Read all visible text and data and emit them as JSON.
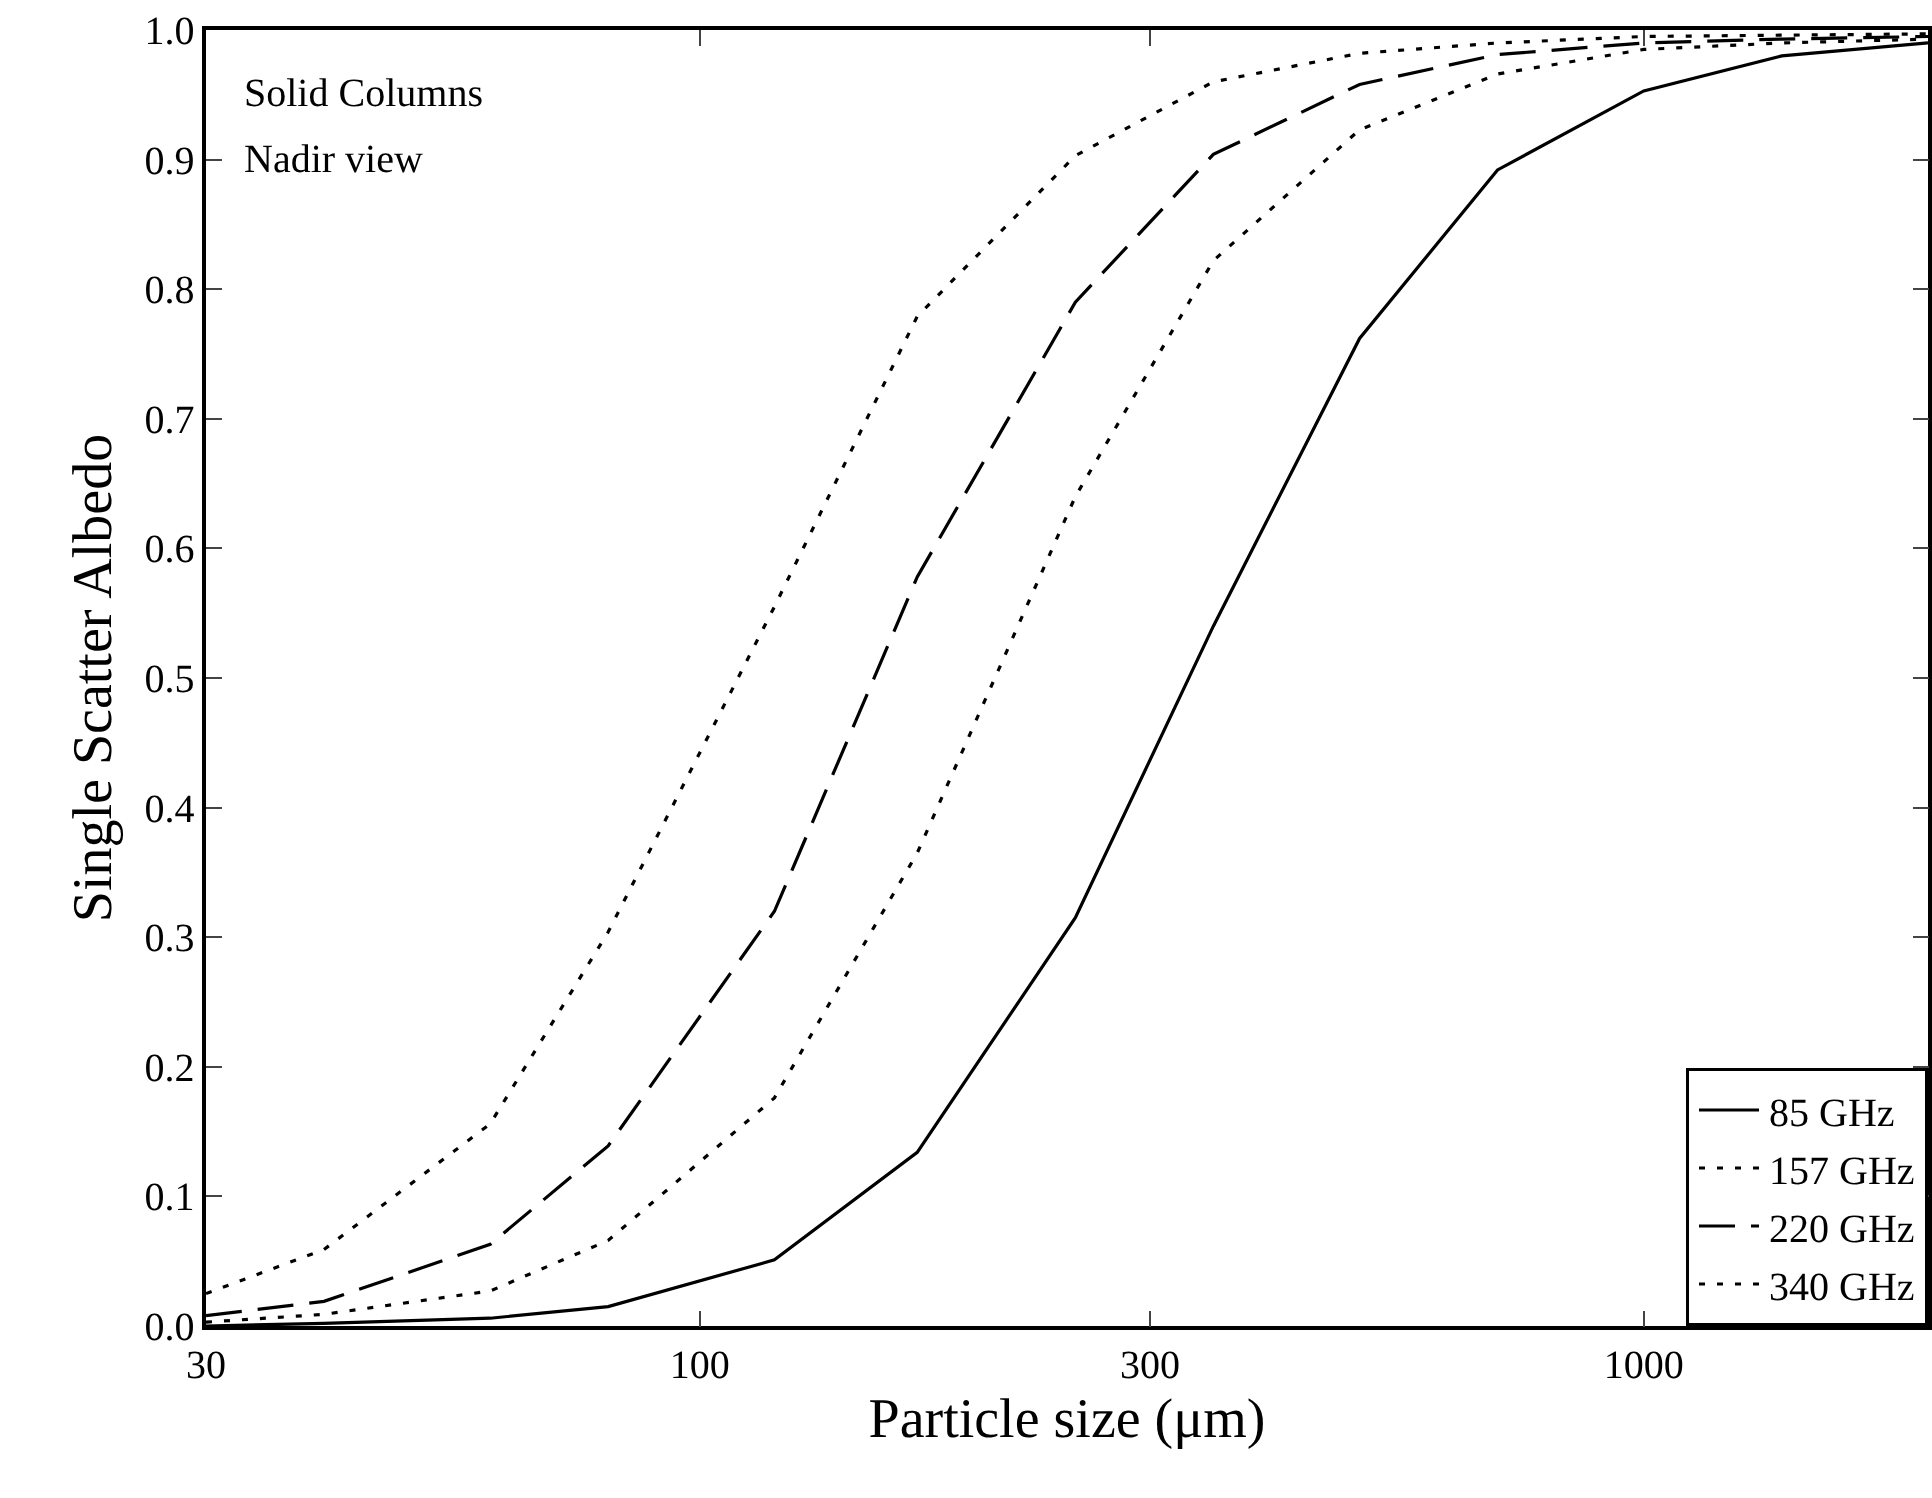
{
  "chart_data": {
    "type": "line",
    "xlabel": "Particle size (μm)",
    "ylabel": "Single Scatter Albedo",
    "annotations": [
      "Solid Columns",
      "Nadir view"
    ],
    "x": [
      30,
      40,
      60,
      80,
      120,
      170,
      250,
      350,
      500,
      700,
      1000,
      1400,
      2000
    ],
    "series": [
      {
        "name": "85 GHz",
        "color": "#000000",
        "line_style": "solid",
        "values": [
          0.0,
          0.002,
          0.006,
          0.015,
          0.051,
          0.134,
          0.315,
          0.54,
          0.762,
          0.892,
          0.953,
          0.98,
          0.99
        ]
      },
      {
        "name": "157 GHz",
        "color": "#000000",
        "line_style": "dotted",
        "values": [
          0.003,
          0.009,
          0.027,
          0.066,
          0.176,
          0.365,
          0.64,
          0.822,
          0.923,
          0.966,
          0.985,
          0.99,
          0.993
        ]
      },
      {
        "name": "220 GHz",
        "color": "#000000",
        "line_style": "dashed",
        "values": [
          0.008,
          0.019,
          0.063,
          0.139,
          0.32,
          0.578,
          0.79,
          0.904,
          0.958,
          0.981,
          0.99,
          0.993,
          0.995
        ]
      },
      {
        "name": "340 GHz",
        "color": "#000000",
        "line_style": "dotted",
        "values": [
          0.025,
          0.059,
          0.156,
          0.304,
          0.555,
          0.779,
          0.903,
          0.96,
          0.982,
          0.99,
          0.995,
          0.996,
          0.997
        ]
      }
    ],
    "log": "x",
    "xlim": [
      30,
      2000
    ],
    "xticks": [
      30,
      100,
      300,
      1000
    ],
    "ylim": [
      0,
      1
    ],
    "yticks": [
      {
        "value": 0,
        "label": "0.0"
      },
      0.1,
      0.2,
      0.3,
      0.4,
      0.5,
      0.6,
      0.7,
      0.8,
      0.9,
      {
        "value": 1,
        "label": "1.0"
      }
    ],
    "grid": false,
    "legend": "bottom right",
    "marker": "none"
  }
}
